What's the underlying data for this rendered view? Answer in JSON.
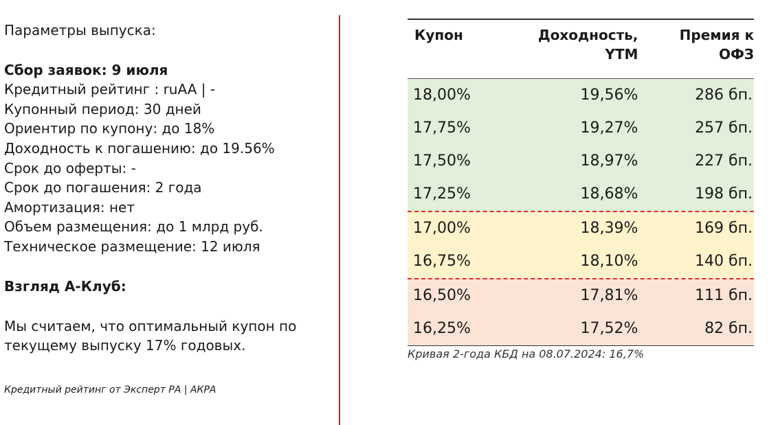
{
  "params": {
    "title": "Параметры выпуска:",
    "collection": "Сбор заявок: 9 июля",
    "lines": [
      "Кредитный рейтинг : ruAA | -",
      "Купонный период: 30 дней",
      "Ориентир по купону: до 18%",
      "Доходность к погашению: до 19.56%",
      "Срок до оферты: -",
      "Срок до погашения: 2 года",
      "Амортизация: нет",
      "Объем размещения: до 1 млрд руб.",
      "Техническое размещение: 12 июля"
    ]
  },
  "view": {
    "title": "Взгляд А-Клуб:",
    "text_line1": "Мы считаем, что оптимальный купон по",
    "text_line2": "текущему выпуску 17% годовых.",
    "footnote": "Кредитный рейтинг от Эксперт РА | АКРА"
  },
  "table": {
    "headers": {
      "coupon": "Купон",
      "ytm_line1": "Доходность,",
      "ytm_line2": "YTM",
      "premium_line1": "Премия к",
      "premium_line2": "ОФЗ"
    },
    "rows": [
      {
        "coupon": "18,00%",
        "ytm": "19,56%",
        "premium": "286 бп.",
        "zone": "green"
      },
      {
        "coupon": "17,75%",
        "ytm": "19,27%",
        "premium": "257 бп.",
        "zone": "green"
      },
      {
        "coupon": "17,50%",
        "ytm": "18,97%",
        "premium": "227 бп.",
        "zone": "green"
      },
      {
        "coupon": "17,25%",
        "ytm": "18,68%",
        "premium": "198 бп.",
        "zone": "green"
      },
      {
        "coupon": "17,00%",
        "ytm": "18,39%",
        "premium": "169 бп.",
        "zone": "yellow"
      },
      {
        "coupon": "16,75%",
        "ytm": "18,10%",
        "premium": "140 бп.",
        "zone": "yellow"
      },
      {
        "coupon": "16,50%",
        "ytm": "17,81%",
        "premium": "111 бп.",
        "zone": "red"
      },
      {
        "coupon": "16,25%",
        "ytm": "17,52%",
        "premium": "82 бп.",
        "zone": "red"
      }
    ],
    "caption": "Кривая 2-года КБД на 08.07.2024: 16,7%"
  },
  "colors": {
    "green_zone": "#e2efda",
    "yellow_zone": "#fff3cc",
    "red_zone": "#fbe4d6",
    "divider": "#c0262d",
    "dashed_separator": "#e02b2b"
  }
}
